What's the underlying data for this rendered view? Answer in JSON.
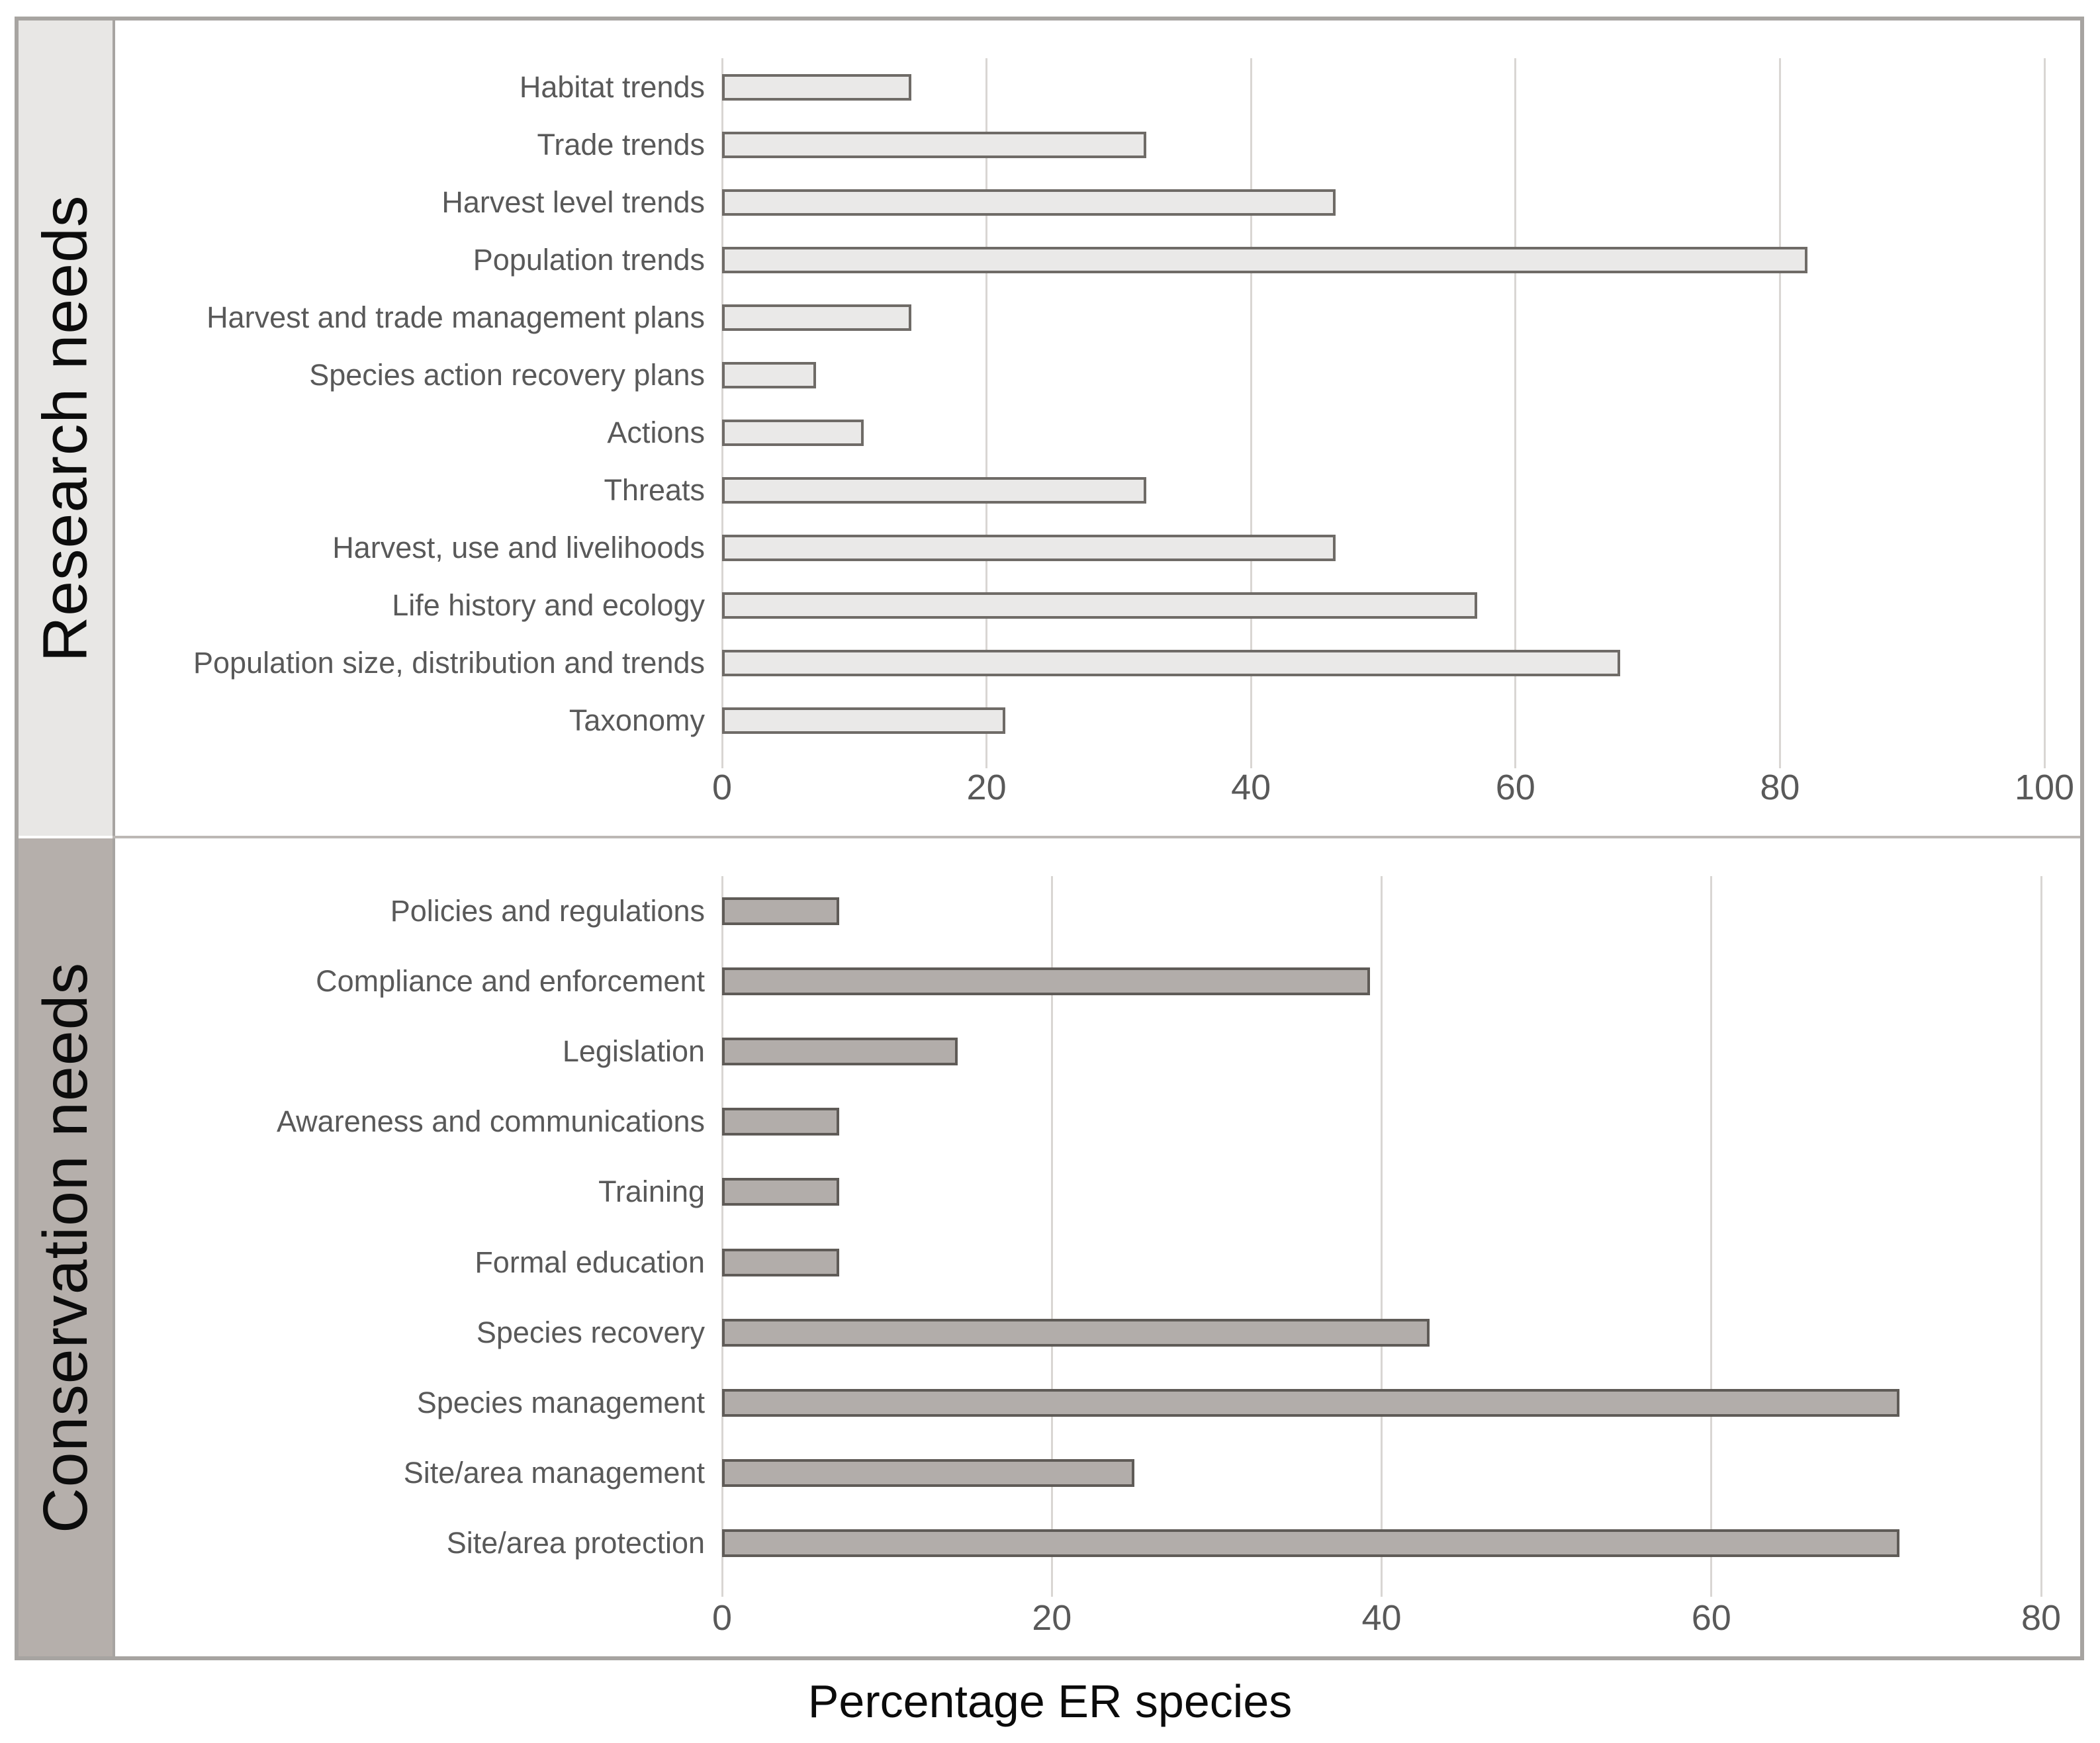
{
  "figure": {
    "axis_title": "Percentage ER species",
    "colors": {
      "background": "#ffffff",
      "frame_border": "#a7a4a1",
      "panel_divider": "#bcb8b5",
      "gridline": "#d9d6d3",
      "label_text": "#595959",
      "band_text": "#0c0c0c"
    }
  },
  "chart_data": [
    {
      "type": "bar",
      "orientation": "horizontal",
      "panel_label": "Research needs",
      "band_color": "#e8e7e5",
      "bar_fill": "#eae9e8",
      "bar_border": "#6f6b67",
      "xlabel": "Percentage ER species",
      "xlim": [
        0,
        100
      ],
      "xticks": [
        0,
        20,
        40,
        60,
        80,
        100
      ],
      "grid": true,
      "legend": false,
      "categories": [
        "Habitat trends",
        "Trade trends",
        "Harvest level trends",
        "Population trends",
        "Harvest and trade management plans",
        "Species action recovery plans",
        "Actions",
        "Threats",
        "Harvest, use and livelihoods",
        "Life history and ecology",
        "Population size, distribution and trends",
        "Taxonomy"
      ],
      "values": [
        14.3,
        32.1,
        46.4,
        82.1,
        14.3,
        7.1,
        10.7,
        32.1,
        46.4,
        57.1,
        67.9,
        21.4
      ]
    },
    {
      "type": "bar",
      "orientation": "horizontal",
      "panel_label": "Conservation needs",
      "band_color": "#b5afab",
      "bar_fill": "#b2adaa",
      "bar_border": "#5f5b57",
      "xlabel": "Percentage ER species",
      "xlim": [
        0,
        80
      ],
      "xticks": [
        0,
        20,
        40,
        60,
        80
      ],
      "grid": true,
      "legend": false,
      "categories": [
        "Policies and regulations",
        "Compliance and enforcement",
        "Legislation",
        "Awareness and communications",
        "Training",
        "Formal education",
        "Species recovery",
        "Species management",
        "Site/area management",
        "Site/area protection"
      ],
      "values": [
        7.1,
        39.3,
        14.3,
        7.1,
        7.1,
        7.1,
        42.9,
        71.4,
        25.0,
        71.4
      ]
    }
  ]
}
